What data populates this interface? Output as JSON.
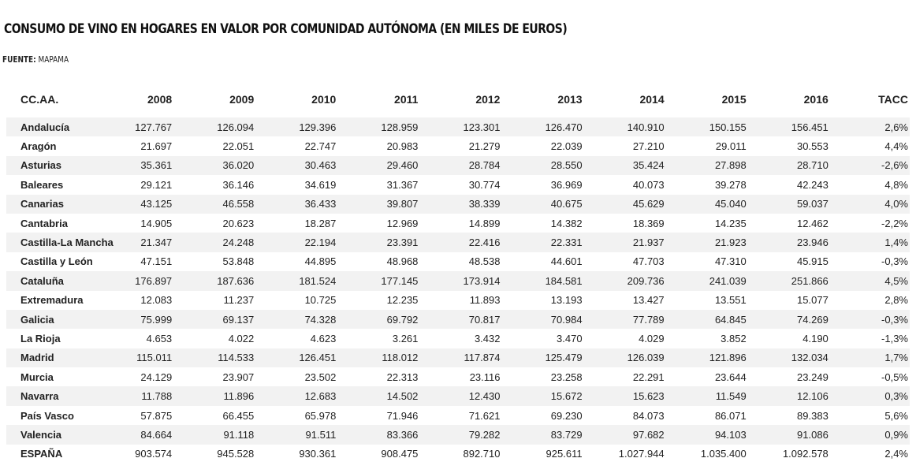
{
  "title": "Consumo de vino en hogares en valor por Comunidad Autónoma (en miles de euros)",
  "source": {
    "label": "Fuente:",
    "value": "MAPAMA"
  },
  "chart_data": {
    "type": "table",
    "title": "Consumo de vino en hogares en valor por Comunidad Autónoma (en miles de euros)",
    "columns": [
      "CC.AA.",
      "2008",
      "2009",
      "2010",
      "2011",
      "2012",
      "2013",
      "2014",
      "2015",
      "2016",
      "TACC"
    ],
    "rows": [
      [
        "Andalucía",
        "127.767",
        "126.094",
        "129.396",
        "128.959",
        "123.301",
        "126.470",
        "140.910",
        "150.155",
        "156.451",
        "2,6%"
      ],
      [
        "Aragón",
        "21.697",
        "22.051",
        "22.747",
        "20.983",
        "21.279",
        "22.039",
        "27.210",
        "29.011",
        "30.553",
        "4,4%"
      ],
      [
        "Asturias",
        "35.361",
        "36.020",
        "30.463",
        "29.460",
        "28.784",
        "28.550",
        "35.424",
        "27.898",
        "28.710",
        "-2,6%"
      ],
      [
        "Baleares",
        "29.121",
        "36.146",
        "34.619",
        "31.367",
        "30.774",
        "36.969",
        "40.073",
        "39.278",
        "42.243",
        "4,8%"
      ],
      [
        "Canarias",
        "43.125",
        "46.558",
        "36.433",
        "39.807",
        "38.339",
        "40.675",
        "45.629",
        "45.040",
        "59.037",
        "4,0%"
      ],
      [
        "Cantabria",
        "14.905",
        "20.623",
        "18.287",
        "12.969",
        "14.899",
        "14.382",
        "18.369",
        "14.235",
        "12.462",
        "-2,2%"
      ],
      [
        "Castilla-La Mancha",
        "21.347",
        "24.248",
        "22.194",
        "23.391",
        "22.416",
        "22.331",
        "21.937",
        "21.923",
        "23.946",
        "1,4%"
      ],
      [
        "Castilla y León",
        "47.151",
        "53.848",
        "44.895",
        "48.968",
        "48.538",
        "44.601",
        "47.703",
        "47.310",
        "45.915",
        "-0,3%"
      ],
      [
        "Cataluña",
        "176.897",
        "187.636",
        "181.524",
        "177.145",
        "173.914",
        "184.581",
        "209.736",
        "241.039",
        "251.866",
        "4,5%"
      ],
      [
        "Extremadura",
        "12.083",
        "11.237",
        "10.725",
        "12.235",
        "11.893",
        "13.193",
        "13.427",
        "13.551",
        "15.077",
        "2,8%"
      ],
      [
        "Galicia",
        "75.999",
        "69.137",
        "74.328",
        "69.792",
        "70.817",
        "70.984",
        "77.789",
        "64.845",
        "74.269",
        "-0,3%"
      ],
      [
        "La Rioja",
        "4.653",
        "4.022",
        "4.623",
        "3.261",
        "3.432",
        "3.470",
        "4.029",
        "3.852",
        "4.190",
        "-1,3%"
      ],
      [
        "Madrid",
        "115.011",
        "114.533",
        "126.451",
        "118.012",
        "117.874",
        "125.479",
        "126.039",
        "121.896",
        "132.034",
        "1,7%"
      ],
      [
        "Murcia",
        "24.129",
        "23.907",
        "23.502",
        "22.313",
        "23.116",
        "23.258",
        "22.291",
        "23.644",
        "23.249",
        "-0,5%"
      ],
      [
        "Navarra",
        "11.788",
        "11.896",
        "12.683",
        "14.502",
        "12.430",
        "15.672",
        "15.623",
        "11.549",
        "12.106",
        "0,3%"
      ],
      [
        "País Vasco",
        "57.875",
        "66.455",
        "65.978",
        "71.946",
        "71.621",
        "69.230",
        "84.073",
        "86.071",
        "89.383",
        "5,6%"
      ],
      [
        "Valencia",
        "84.664",
        "91.118",
        "91.511",
        "83.366",
        "79.282",
        "83.729",
        "97.682",
        "94.103",
        "91.086",
        "0,9%"
      ],
      [
        "ESPAÑA",
        "903.574",
        "945.528",
        "930.361",
        "908.475",
        "892.710",
        "925.611",
        "1.027.944",
        "1.035.400",
        "1.092.578",
        "2,4%"
      ]
    ],
    "row_stripe_color": "#f2f2f2",
    "text_color": "#222222"
  }
}
